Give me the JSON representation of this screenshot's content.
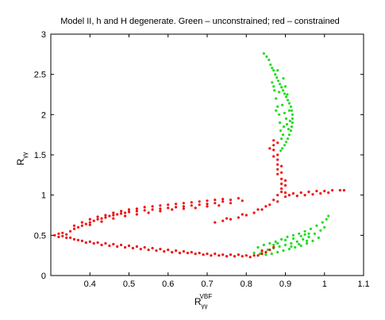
{
  "chart_data": {
    "type": "scatter",
    "title": "Model II, h and H degenerate. Green – unconstrained; red – constrained",
    "xlabel": {
      "base": "R",
      "sub": "γγ",
      "sup": "VBF"
    },
    "ylabel": {
      "base": "R",
      "sub": "γγ"
    },
    "xlim": [
      0.3,
      1.1
    ],
    "ylim": [
      0,
      3
    ],
    "xticks": [
      0.4,
      0.5,
      0.6,
      0.7,
      0.8,
      0.9,
      1,
      1.1
    ],
    "xtick_labels": [
      "0.4",
      "0.5",
      "0.6",
      "0.7",
      "0.8",
      "0.9",
      "1",
      "1.1"
    ],
    "yticks": [
      0,
      0.5,
      1,
      1.5,
      2,
      2.5,
      3
    ],
    "ytick_labels": [
      "0",
      "0.5",
      "1",
      "1.5",
      "2",
      "2.5",
      "3"
    ],
    "grid": false,
    "series": [
      {
        "name": "unconstrained",
        "color": "#22dd22",
        "points": [
          [
            0.845,
            2.76
          ],
          [
            0.852,
            2.72
          ],
          [
            0.858,
            2.68
          ],
          [
            0.862,
            2.62
          ],
          [
            0.866,
            2.58
          ],
          [
            0.87,
            2.55
          ],
          [
            0.874,
            2.5
          ],
          [
            0.878,
            2.46
          ],
          [
            0.882,
            2.42
          ],
          [
            0.886,
            2.38
          ],
          [
            0.89,
            2.34
          ],
          [
            0.894,
            2.3
          ],
          [
            0.898,
            2.26
          ],
          [
            0.902,
            2.22
          ],
          [
            0.906,
            2.18
          ],
          [
            0.91,
            2.14
          ],
          [
            0.914,
            2.1
          ],
          [
            0.916,
            2.05
          ],
          [
            0.918,
            2.0
          ],
          [
            0.918,
            1.95
          ],
          [
            0.918,
            1.9
          ],
          [
            0.916,
            1.85
          ],
          [
            0.914,
            1.8
          ],
          [
            0.91,
            1.75
          ],
          [
            0.906,
            1.7
          ],
          [
            0.902,
            1.66
          ],
          [
            0.898,
            1.62
          ],
          [
            0.892,
            1.58
          ],
          [
            0.888,
            1.55
          ],
          [
            0.866,
            2.4
          ],
          [
            0.872,
            2.3
          ],
          [
            0.876,
            2.2
          ],
          [
            0.88,
            2.1
          ],
          [
            0.884,
            2.0
          ],
          [
            0.886,
            1.9
          ],
          [
            0.888,
            1.8
          ],
          [
            0.89,
            1.7
          ],
          [
            0.895,
            2.45
          ],
          [
            0.9,
            2.35
          ],
          [
            0.905,
            2.25
          ],
          [
            0.91,
            2.05
          ],
          [
            0.902,
            1.95
          ],
          [
            0.896,
            1.85
          ],
          [
            0.894,
            1.75
          ],
          [
            0.912,
            1.92
          ],
          [
            0.908,
            1.82
          ],
          [
            0.88,
            2.55
          ],
          [
            0.884,
            2.28
          ],
          [
            0.892,
            2.12
          ],
          [
            0.898,
            2.02
          ],
          [
            0.904,
            1.88
          ],
          [
            0.87,
            2.35
          ],
          [
            0.876,
            2.05
          ],
          [
            0.83,
            0.35
          ],
          [
            0.845,
            0.38
          ],
          [
            0.86,
            0.4
          ],
          [
            0.875,
            0.42
          ],
          [
            0.89,
            0.45
          ],
          [
            0.905,
            0.48
          ],
          [
            0.92,
            0.5
          ],
          [
            0.935,
            0.52
          ],
          [
            0.95,
            0.55
          ],
          [
            0.965,
            0.58
          ],
          [
            0.98,
            0.62
          ],
          [
            0.995,
            0.66
          ],
          [
            1.005,
            0.7
          ],
          [
            1.01,
            0.74
          ],
          [
            0.84,
            0.3
          ],
          [
            0.855,
            0.32
          ],
          [
            0.87,
            0.34
          ],
          [
            0.885,
            0.36
          ],
          [
            0.9,
            0.38
          ],
          [
            0.915,
            0.4
          ],
          [
            0.93,
            0.42
          ],
          [
            0.945,
            0.45
          ],
          [
            0.96,
            0.48
          ],
          [
            0.975,
            0.52
          ],
          [
            0.99,
            0.56
          ],
          [
            1.0,
            0.6
          ],
          [
            0.82,
            0.28
          ],
          [
            0.835,
            0.27
          ],
          [
            0.85,
            0.26
          ],
          [
            0.865,
            0.27
          ],
          [
            0.88,
            0.29
          ],
          [
            0.895,
            0.31
          ],
          [
            0.91,
            0.33
          ],
          [
            0.925,
            0.35
          ],
          [
            0.94,
            0.37
          ],
          [
            0.955,
            0.4
          ],
          [
            0.97,
            0.43
          ],
          [
            0.985,
            0.47
          ],
          [
            0.9,
            0.44
          ],
          [
            0.92,
            0.46
          ],
          [
            0.94,
            0.49
          ],
          [
            0.96,
            0.52
          ],
          [
            0.915,
            0.36
          ],
          [
            0.935,
            0.39
          ],
          [
            0.955,
            0.43
          ],
          [
            0.88,
            0.4
          ],
          [
            0.87,
            0.38
          ],
          [
            0.95,
            0.51
          ]
        ]
      },
      {
        "name": "constrained",
        "color": "#ee1111",
        "points": [
          [
            0.31,
            0.5
          ],
          [
            0.32,
            0.48
          ],
          [
            0.32,
            0.52
          ],
          [
            0.33,
            0.49
          ],
          [
            0.33,
            0.53
          ],
          [
            0.34,
            0.51
          ],
          [
            0.35,
            0.47
          ],
          [
            0.35,
            0.55
          ],
          [
            0.36,
            0.58
          ],
          [
            0.37,
            0.6
          ],
          [
            0.38,
            0.62
          ],
          [
            0.39,
            0.64
          ],
          [
            0.4,
            0.66
          ],
          [
            0.41,
            0.68
          ],
          [
            0.42,
            0.7
          ],
          [
            0.43,
            0.71
          ],
          [
            0.44,
            0.72
          ],
          [
            0.45,
            0.74
          ],
          [
            0.46,
            0.75
          ],
          [
            0.47,
            0.76
          ],
          [
            0.48,
            0.77
          ],
          [
            0.49,
            0.78
          ],
          [
            0.5,
            0.79
          ],
          [
            0.52,
            0.8
          ],
          [
            0.54,
            0.81
          ],
          [
            0.56,
            0.82
          ],
          [
            0.58,
            0.83
          ],
          [
            0.6,
            0.84
          ],
          [
            0.62,
            0.85
          ],
          [
            0.64,
            0.86
          ],
          [
            0.66,
            0.87
          ],
          [
            0.68,
            0.88
          ],
          [
            0.7,
            0.89
          ],
          [
            0.72,
            0.9
          ],
          [
            0.74,
            0.92
          ],
          [
            0.76,
            0.94
          ],
          [
            0.78,
            0.96
          ],
          [
            0.36,
            0.62
          ],
          [
            0.38,
            0.66
          ],
          [
            0.4,
            0.7
          ],
          [
            0.42,
            0.73
          ],
          [
            0.44,
            0.75
          ],
          [
            0.46,
            0.78
          ],
          [
            0.48,
            0.8
          ],
          [
            0.5,
            0.82
          ],
          [
            0.52,
            0.83
          ],
          [
            0.54,
            0.85
          ],
          [
            0.56,
            0.86
          ],
          [
            0.58,
            0.87
          ],
          [
            0.6,
            0.88
          ],
          [
            0.62,
            0.89
          ],
          [
            0.64,
            0.9
          ],
          [
            0.66,
            0.91
          ],
          [
            0.68,
            0.92
          ],
          [
            0.7,
            0.93
          ],
          [
            0.72,
            0.94
          ],
          [
            0.74,
            0.95
          ],
          [
            0.4,
            0.63
          ],
          [
            0.43,
            0.67
          ],
          [
            0.46,
            0.71
          ],
          [
            0.49,
            0.74
          ],
          [
            0.52,
            0.76
          ],
          [
            0.55,
            0.78
          ],
          [
            0.58,
            0.8
          ],
          [
            0.61,
            0.82
          ],
          [
            0.64,
            0.83
          ],
          [
            0.67,
            0.84
          ],
          [
            0.7,
            0.86
          ],
          [
            0.73,
            0.87
          ],
          [
            0.76,
            0.9
          ],
          [
            0.79,
            0.93
          ],
          [
            0.34,
            0.47
          ],
          [
            0.36,
            0.45
          ],
          [
            0.38,
            0.43
          ],
          [
            0.4,
            0.42
          ],
          [
            0.42,
            0.41
          ],
          [
            0.44,
            0.4
          ],
          [
            0.46,
            0.39
          ],
          [
            0.48,
            0.38
          ],
          [
            0.5,
            0.37
          ],
          [
            0.52,
            0.36
          ],
          [
            0.54,
            0.35
          ],
          [
            0.56,
            0.34
          ],
          [
            0.58,
            0.33
          ],
          [
            0.6,
            0.32
          ],
          [
            0.62,
            0.31
          ],
          [
            0.64,
            0.3
          ],
          [
            0.66,
            0.29
          ],
          [
            0.68,
            0.28
          ],
          [
            0.7,
            0.27
          ],
          [
            0.72,
            0.27
          ],
          [
            0.74,
            0.26
          ],
          [
            0.76,
            0.26
          ],
          [
            0.78,
            0.26
          ],
          [
            0.8,
            0.25
          ],
          [
            0.82,
            0.25
          ],
          [
            0.84,
            0.27
          ],
          [
            0.37,
            0.44
          ],
          [
            0.39,
            0.41
          ],
          [
            0.41,
            0.4
          ],
          [
            0.43,
            0.38
          ],
          [
            0.45,
            0.37
          ],
          [
            0.47,
            0.36
          ],
          [
            0.49,
            0.35
          ],
          [
            0.51,
            0.34
          ],
          [
            0.53,
            0.33
          ],
          [
            0.55,
            0.32
          ],
          [
            0.57,
            0.31
          ],
          [
            0.59,
            0.3
          ],
          [
            0.61,
            0.29
          ],
          [
            0.63,
            0.28
          ],
          [
            0.65,
            0.28
          ],
          [
            0.67,
            0.27
          ],
          [
            0.69,
            0.26
          ],
          [
            0.71,
            0.25
          ],
          [
            0.73,
            0.25
          ],
          [
            0.75,
            0.24
          ],
          [
            0.77,
            0.24
          ],
          [
            0.79,
            0.24
          ],
          [
            0.81,
            0.23
          ],
          [
            0.83,
            0.25
          ],
          [
            0.85,
            0.29
          ],
          [
            0.86,
            0.32
          ],
          [
            0.87,
            0.35
          ],
          [
            0.84,
            0.31
          ],
          [
            0.72,
            0.66
          ],
          [
            0.74,
            0.68
          ],
          [
            0.76,
            0.7
          ],
          [
            0.78,
            0.72
          ],
          [
            0.8,
            0.75
          ],
          [
            0.82,
            0.78
          ],
          [
            0.84,
            0.82
          ],
          [
            0.86,
            0.88
          ],
          [
            0.87,
            0.94
          ],
          [
            0.88,
            1.0
          ],
          [
            0.89,
            1.04
          ],
          [
            0.9,
            1.03
          ],
          [
            0.92,
            1.02
          ],
          [
            0.94,
            1.03
          ],
          [
            0.96,
            1.04
          ],
          [
            0.98,
            1.05
          ],
          [
            1.0,
            1.05
          ],
          [
            1.02,
            1.06
          ],
          [
            1.04,
            1.06
          ],
          [
            1.05,
            1.06
          ],
          [
            0.75,
            0.71
          ],
          [
            0.79,
            0.76
          ],
          [
            0.83,
            0.82
          ],
          [
            0.85,
            0.86
          ],
          [
            0.88,
            0.92
          ],
          [
            0.9,
            0.98
          ],
          [
            0.91,
            1.0
          ],
          [
            0.93,
            0.99
          ],
          [
            0.95,
            1.0
          ],
          [
            0.97,
            1.01
          ],
          [
            0.99,
            1.02
          ],
          [
            1.01,
            1.03
          ],
          [
            0.89,
            1.08
          ],
          [
            0.89,
            1.14
          ],
          [
            0.89,
            1.2
          ],
          [
            0.88,
            1.26
          ],
          [
            0.88,
            1.32
          ],
          [
            0.88,
            1.38
          ],
          [
            0.88,
            1.44
          ],
          [
            0.88,
            1.5
          ],
          [
            0.87,
            1.56
          ],
          [
            0.87,
            1.62
          ],
          [
            0.86,
            1.58
          ],
          [
            0.9,
            1.12
          ],
          [
            0.9,
            1.18
          ],
          [
            0.89,
            1.28
          ],
          [
            0.89,
            1.36
          ],
          [
            0.87,
            1.48
          ],
          [
            0.88,
            1.65
          ],
          [
            0.87,
            1.68
          ]
        ]
      }
    ]
  }
}
